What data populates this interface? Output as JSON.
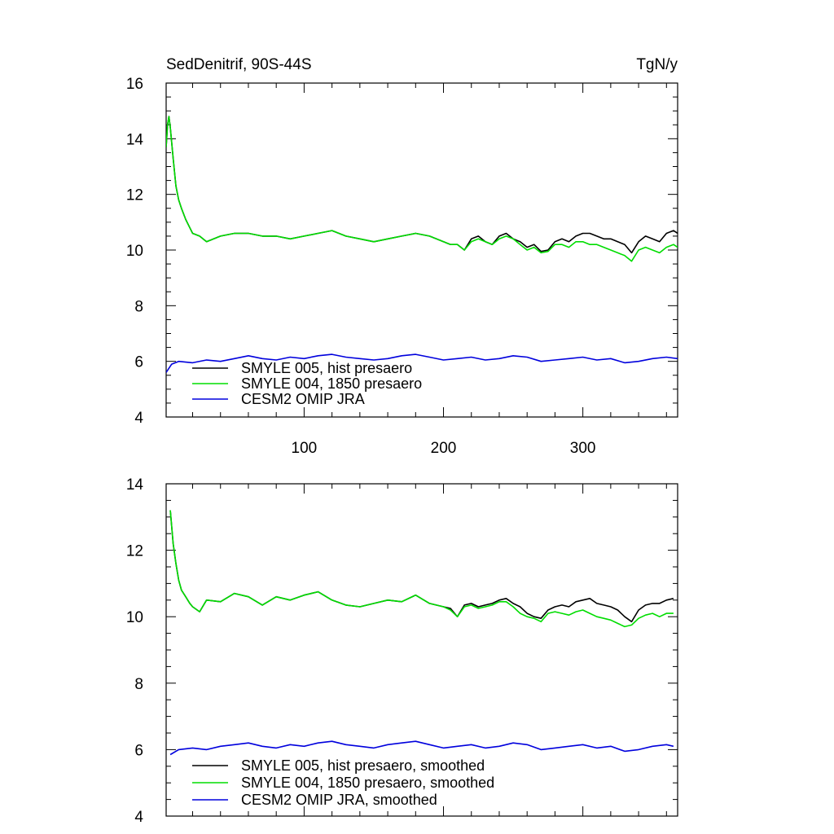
{
  "figure": {
    "title_left": "SedDenitrif, 90S-44S",
    "title_right": "TgN/y"
  },
  "colors": {
    "SMYLE 005": "#000000",
    "SMYLE 004": "#00dd00",
    "CESM2 OMIP": "#0000dd"
  },
  "chart_data": [
    {
      "type": "line",
      "xlim": [
        1,
        368
      ],
      "ylim": [
        4,
        16
      ],
      "y_ticks": [
        4,
        6,
        8,
        10,
        12,
        14,
        16
      ],
      "y_tick_labels": [
        "4",
        "6",
        "8",
        "10",
        "12",
        "14",
        "16"
      ],
      "x_ticks": [
        100,
        200,
        300
      ],
      "x_tick_labels": [
        "100",
        "200",
        "300"
      ],
      "legend_position": "bottom-left",
      "series": [
        {
          "name": "SMYLE 005, hist presaero",
          "color": "#000000",
          "x": [
            1,
            2,
            3,
            4,
            6,
            8,
            10,
            12,
            15,
            18,
            20,
            25,
            30,
            40,
            50,
            60,
            70,
            80,
            90,
            100,
            110,
            120,
            130,
            140,
            150,
            160,
            170,
            180,
            190,
            200,
            205,
            210,
            215,
            220,
            225,
            230,
            235,
            240,
            245,
            250,
            255,
            260,
            265,
            270,
            275,
            280,
            285,
            290,
            295,
            300,
            305,
            310,
            315,
            320,
            325,
            330,
            335,
            340,
            345,
            350,
            355,
            360,
            365,
            368
          ],
          "y": [
            13.7,
            14.5,
            14.8,
            14.4,
            13.3,
            12.3,
            11.8,
            11.5,
            11.1,
            10.8,
            10.6,
            10.5,
            10.3,
            10.5,
            10.6,
            10.6,
            10.5,
            10.5,
            10.4,
            10.5,
            10.6,
            10.7,
            10.5,
            10.4,
            10.3,
            10.4,
            10.5,
            10.6,
            10.5,
            10.3,
            10.2,
            10.2,
            10.0,
            10.4,
            10.5,
            10.3,
            10.2,
            10.5,
            10.6,
            10.4,
            10.3,
            10.1,
            10.2,
            9.95,
            10.0,
            10.3,
            10.4,
            10.3,
            10.5,
            10.6,
            10.6,
            10.5,
            10.4,
            10.4,
            10.3,
            10.2,
            9.9,
            10.3,
            10.5,
            10.4,
            10.3,
            10.6,
            10.7,
            10.6
          ]
        },
        {
          "name": "SMYLE 004, 1850 presaero",
          "color": "#00dd00",
          "x": [
            1,
            2,
            3,
            4,
            6,
            8,
            10,
            12,
            15,
            18,
            20,
            25,
            30,
            40,
            50,
            60,
            70,
            80,
            90,
            100,
            110,
            120,
            130,
            140,
            150,
            160,
            170,
            180,
            190,
            200,
            205,
            210,
            215,
            220,
            225,
            230,
            235,
            240,
            245,
            250,
            255,
            260,
            265,
            270,
            275,
            280,
            285,
            290,
            295,
            300,
            305,
            310,
            315,
            320,
            325,
            330,
            335,
            340,
            345,
            350,
            355,
            360,
            365,
            368
          ],
          "y": [
            13.7,
            14.5,
            14.8,
            14.4,
            13.3,
            12.3,
            11.8,
            11.5,
            11.1,
            10.8,
            10.6,
            10.5,
            10.3,
            10.5,
            10.6,
            10.6,
            10.5,
            10.5,
            10.4,
            10.5,
            10.6,
            10.7,
            10.5,
            10.4,
            10.3,
            10.4,
            10.5,
            10.6,
            10.5,
            10.3,
            10.2,
            10.2,
            10.0,
            10.3,
            10.4,
            10.3,
            10.2,
            10.4,
            10.5,
            10.4,
            10.2,
            10.0,
            10.1,
            9.9,
            9.95,
            10.2,
            10.2,
            10.1,
            10.3,
            10.3,
            10.2,
            10.2,
            10.1,
            10.0,
            9.9,
            9.8,
            9.6,
            10.0,
            10.1,
            10.0,
            9.9,
            10.1,
            10.2,
            10.1
          ]
        },
        {
          "name": "CESM2 OMIP JRA",
          "color": "#0000dd",
          "x": [
            1,
            5,
            10,
            20,
            30,
            40,
            50,
            60,
            70,
            80,
            90,
            100,
            110,
            120,
            130,
            140,
            150,
            160,
            170,
            180,
            190,
            200,
            210,
            220,
            230,
            240,
            250,
            260,
            270,
            280,
            290,
            300,
            310,
            320,
            330,
            340,
            350,
            360,
            368
          ],
          "y": [
            5.6,
            5.9,
            6.0,
            5.95,
            6.05,
            6.0,
            6.1,
            6.2,
            6.1,
            6.05,
            6.15,
            6.1,
            6.2,
            6.25,
            6.15,
            6.1,
            6.05,
            6.1,
            6.2,
            6.25,
            6.15,
            6.05,
            6.1,
            6.15,
            6.05,
            6.1,
            6.2,
            6.15,
            6.0,
            6.05,
            6.1,
            6.15,
            6.05,
            6.1,
            5.95,
            6.0,
            6.1,
            6.15,
            6.1
          ]
        }
      ]
    },
    {
      "type": "line",
      "xlim": [
        1,
        368
      ],
      "ylim": [
        4,
        14
      ],
      "y_ticks": [
        4,
        6,
        8,
        10,
        12,
        14
      ],
      "y_tick_labels": [
        "4",
        "6",
        "8",
        "10",
        "12",
        "14"
      ],
      "x_ticks": [
        100,
        200,
        300
      ],
      "x_tick_labels": [],
      "legend_position": "bottom-left",
      "series": [
        {
          "name": "SMYLE 005, hist presaero, smoothed",
          "color": "#000000",
          "x": [
            4,
            6,
            8,
            10,
            12,
            15,
            18,
            20,
            25,
            30,
            40,
            50,
            60,
            70,
            80,
            90,
            100,
            110,
            120,
            130,
            140,
            150,
            160,
            170,
            180,
            190,
            200,
            205,
            210,
            215,
            220,
            225,
            230,
            235,
            240,
            245,
            250,
            255,
            260,
            265,
            270,
            275,
            280,
            285,
            290,
            295,
            300,
            305,
            310,
            315,
            320,
            325,
            330,
            335,
            340,
            345,
            350,
            355,
            360,
            365
          ],
          "y": [
            13.2,
            12.2,
            11.6,
            11.1,
            10.8,
            10.6,
            10.4,
            10.3,
            10.15,
            10.5,
            10.45,
            10.7,
            10.6,
            10.35,
            10.6,
            10.5,
            10.65,
            10.75,
            10.5,
            10.35,
            10.3,
            10.4,
            10.5,
            10.45,
            10.65,
            10.4,
            10.3,
            10.25,
            10.0,
            10.35,
            10.4,
            10.3,
            10.35,
            10.4,
            10.5,
            10.55,
            10.4,
            10.3,
            10.1,
            10.0,
            9.95,
            10.2,
            10.3,
            10.35,
            10.3,
            10.45,
            10.5,
            10.55,
            10.4,
            10.35,
            10.3,
            10.2,
            10.0,
            9.85,
            10.2,
            10.35,
            10.4,
            10.4,
            10.5,
            10.55
          ]
        },
        {
          "name": "SMYLE 004, 1850 presaero, smoothed",
          "color": "#00dd00",
          "x": [
            4,
            6,
            8,
            10,
            12,
            15,
            18,
            20,
            25,
            30,
            40,
            50,
            60,
            70,
            80,
            90,
            100,
            110,
            120,
            130,
            140,
            150,
            160,
            170,
            180,
            190,
            200,
            205,
            210,
            215,
            220,
            225,
            230,
            235,
            240,
            245,
            250,
            255,
            260,
            265,
            270,
            275,
            280,
            285,
            290,
            295,
            300,
            305,
            310,
            315,
            320,
            325,
            330,
            335,
            340,
            345,
            350,
            355,
            360,
            365
          ],
          "y": [
            13.2,
            12.2,
            11.6,
            11.1,
            10.8,
            10.6,
            10.4,
            10.3,
            10.15,
            10.5,
            10.45,
            10.7,
            10.6,
            10.35,
            10.6,
            10.5,
            10.65,
            10.75,
            10.5,
            10.35,
            10.3,
            10.4,
            10.5,
            10.45,
            10.65,
            10.4,
            10.3,
            10.2,
            10.0,
            10.3,
            10.35,
            10.25,
            10.3,
            10.35,
            10.45,
            10.45,
            10.3,
            10.1,
            10.0,
            9.95,
            9.85,
            10.1,
            10.15,
            10.1,
            10.05,
            10.15,
            10.2,
            10.1,
            10.0,
            9.95,
            9.9,
            9.8,
            9.7,
            9.75,
            9.95,
            10.05,
            10.1,
            10.0,
            10.1,
            10.1
          ]
        },
        {
          "name": "CESM2 OMIP JRA, smoothed",
          "color": "#0000dd",
          "x": [
            4,
            10,
            20,
            30,
            40,
            50,
            60,
            70,
            80,
            90,
            100,
            110,
            120,
            130,
            140,
            150,
            160,
            170,
            180,
            190,
            200,
            210,
            220,
            230,
            240,
            250,
            260,
            270,
            280,
            290,
            300,
            310,
            320,
            330,
            340,
            350,
            360,
            365
          ],
          "y": [
            5.85,
            6.0,
            6.05,
            6.0,
            6.1,
            6.15,
            6.2,
            6.1,
            6.05,
            6.15,
            6.1,
            6.2,
            6.25,
            6.15,
            6.1,
            6.05,
            6.15,
            6.2,
            6.25,
            6.15,
            6.05,
            6.1,
            6.15,
            6.05,
            6.1,
            6.2,
            6.15,
            6.0,
            6.05,
            6.1,
            6.15,
            6.05,
            6.1,
            5.95,
            6.0,
            6.1,
            6.15,
            6.1
          ]
        }
      ]
    }
  ]
}
